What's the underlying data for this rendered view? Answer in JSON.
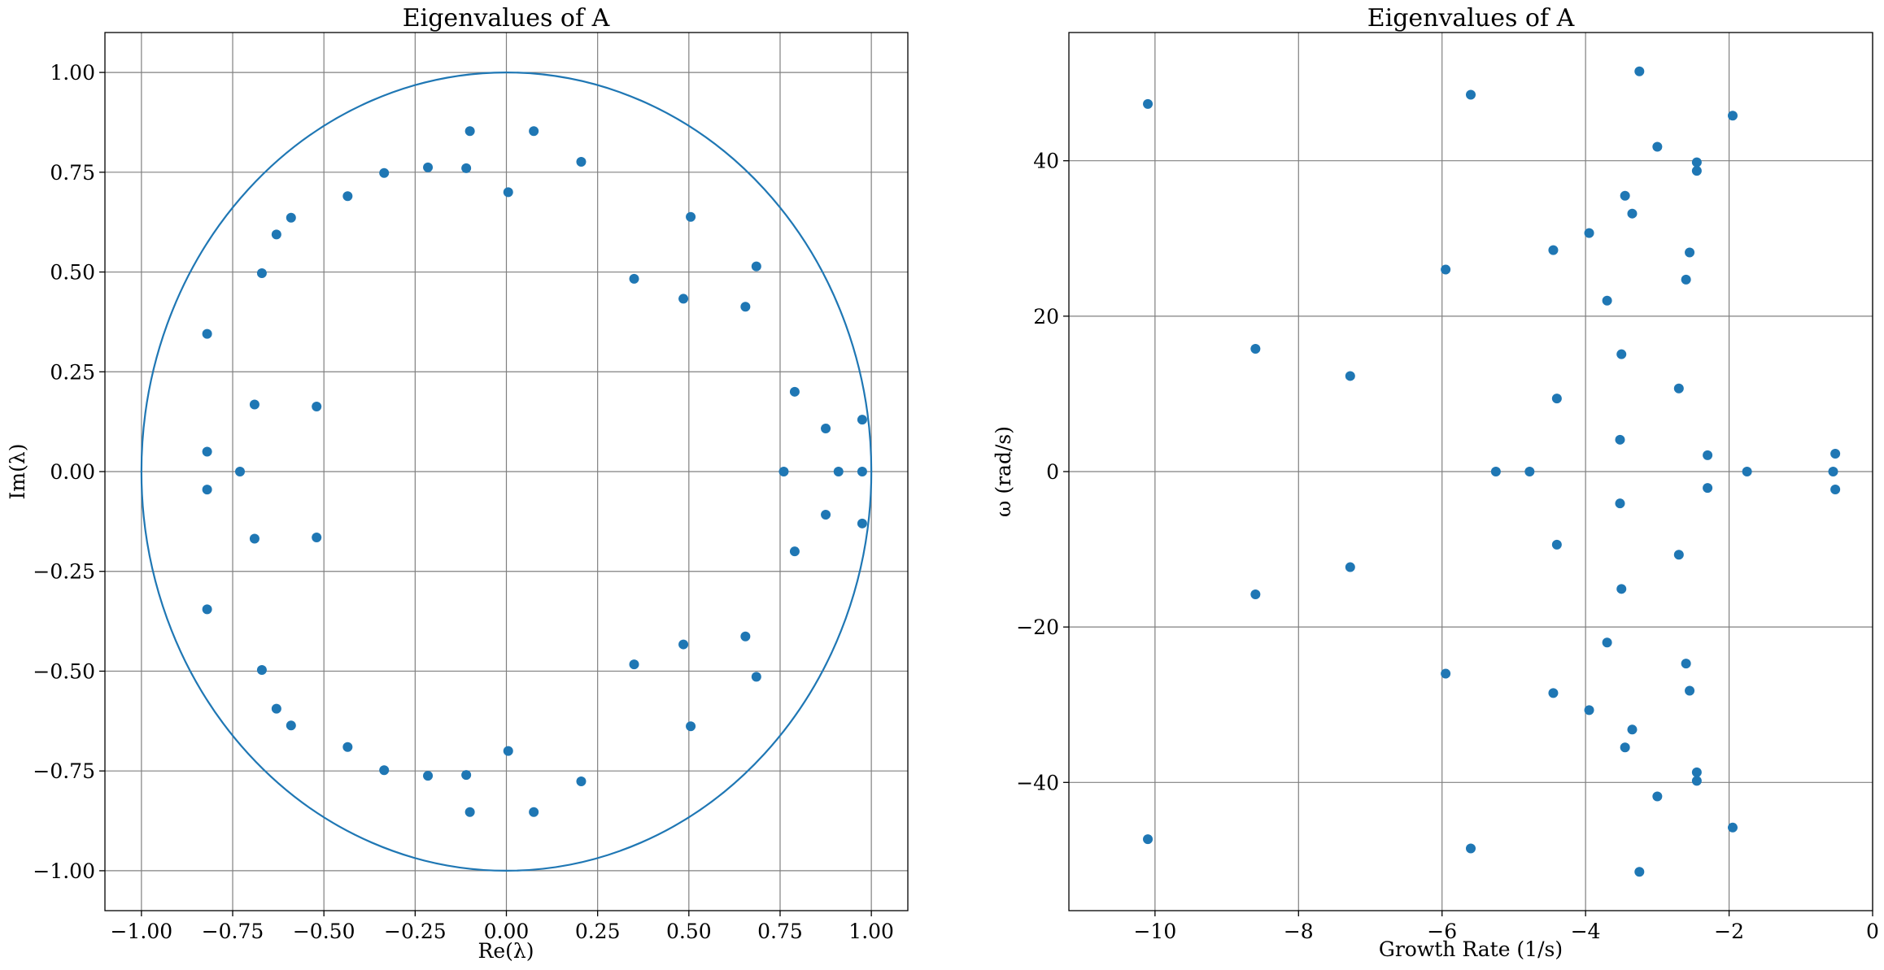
{
  "figure": {
    "colors": {
      "series": "#1f77b4",
      "grid": "#808080",
      "axes": "#000000"
    }
  },
  "chart_data": [
    {
      "type": "scatter",
      "title": "Eigenvalues of A",
      "xlabel": "Re(λ)",
      "ylabel": "Im(λ)",
      "xlim": [
        -1.1,
        1.1
      ],
      "ylim": [
        -1.1,
        1.1
      ],
      "grid": true,
      "xticks": [
        -1.0,
        -0.75,
        -0.5,
        -0.25,
        0.0,
        0.25,
        0.5,
        0.75,
        1.0
      ],
      "xtick_labels": [
        "−1.00",
        "−0.75",
        "−0.50",
        "−0.25",
        "0.00",
        "0.25",
        "0.50",
        "0.75",
        "1.00"
      ],
      "yticks": [
        1.0,
        0.75,
        0.5,
        0.25,
        0.0,
        -0.25,
        -0.5,
        -0.75,
        -1.0
      ],
      "ytick_labels": [
        "1.00",
        "0.75",
        "0.50",
        "0.25",
        "0.00",
        "−0.25",
        "−0.50",
        "−0.75",
        "−1.00"
      ],
      "annotations": [
        "unit circle"
      ],
      "series": [
        {
          "points": [
            [
              -0.82,
              0.345
            ],
            [
              -0.82,
              0.05
            ],
            [
              -0.82,
              -0.045
            ],
            [
              -0.82,
              -0.345
            ],
            [
              -0.73,
              0.0
            ],
            [
              -0.69,
              0.168
            ],
            [
              -0.69,
              -0.168
            ],
            [
              -0.67,
              0.497
            ],
            [
              -0.67,
              -0.497
            ],
            [
              -0.63,
              0.594
            ],
            [
              -0.63,
              -0.594
            ],
            [
              -0.59,
              0.636
            ],
            [
              -0.59,
              -0.636
            ],
            [
              -0.52,
              0.163
            ],
            [
              -0.52,
              -0.165
            ],
            [
              -0.435,
              0.69
            ],
            [
              -0.435,
              -0.69
            ],
            [
              -0.335,
              0.748
            ],
            [
              -0.335,
              -0.748
            ],
            [
              -0.215,
              0.762
            ],
            [
              -0.215,
              -0.762
            ],
            [
              -0.11,
              0.76
            ],
            [
              -0.11,
              -0.76
            ],
            [
              -0.1,
              0.853
            ],
            [
              -0.1,
              -0.853
            ],
            [
              0.005,
              0.7
            ],
            [
              0.005,
              -0.7
            ],
            [
              0.075,
              0.853
            ],
            [
              0.075,
              -0.853
            ],
            [
              0.205,
              0.776
            ],
            [
              0.205,
              -0.776
            ],
            [
              0.35,
              0.483
            ],
            [
              0.35,
              -0.483
            ],
            [
              0.485,
              0.433
            ],
            [
              0.485,
              -0.433
            ],
            [
              0.505,
              0.638
            ],
            [
              0.505,
              -0.638
            ],
            [
              0.655,
              0.413
            ],
            [
              0.655,
              -0.413
            ],
            [
              0.685,
              0.514
            ],
            [
              0.685,
              -0.514
            ],
            [
              0.76,
              0.0
            ],
            [
              0.79,
              0.2
            ],
            [
              0.79,
              -0.2
            ],
            [
              0.875,
              0.108
            ],
            [
              0.875,
              -0.108
            ],
            [
              0.91,
              0.0
            ],
            [
              0.975,
              0.13
            ],
            [
              0.975,
              -0.13
            ],
            [
              0.975,
              0.0
            ]
          ]
        }
      ]
    },
    {
      "type": "scatter",
      "title": "Eigenvalues of A",
      "xlabel": "Growth Rate (1/s)",
      "ylabel": "ω (rad/s)",
      "xlim": [
        -11.2,
        0
      ],
      "ylim": [
        -56.5,
        56.5
      ],
      "grid": true,
      "xticks": [
        -10,
        -8,
        -6,
        -4,
        -2,
        0
      ],
      "xtick_labels": [
        "−10",
        "−8",
        "−6",
        "−4",
        "−2",
        "0"
      ],
      "yticks": [
        40,
        20,
        0,
        -20,
        -40
      ],
      "ytick_labels": [
        "40",
        "20",
        "0",
        "−20",
        "−40"
      ],
      "series": [
        {
          "points": [
            [
              -10.1,
              47.3
            ],
            [
              -10.1,
              -47.3
            ],
            [
              -8.6,
              15.8
            ],
            [
              -8.6,
              -15.8
            ],
            [
              -7.28,
              12.3
            ],
            [
              -7.28,
              -12.3
            ],
            [
              -5.95,
              26.0
            ],
            [
              -5.95,
              -26.0
            ],
            [
              -5.6,
              48.5
            ],
            [
              -5.6,
              -48.5
            ],
            [
              -5.25,
              0.0
            ],
            [
              -4.78,
              0.0
            ],
            [
              -4.45,
              28.5
            ],
            [
              -4.45,
              -28.5
            ],
            [
              -4.4,
              9.4
            ],
            [
              -4.4,
              -9.4
            ],
            [
              -3.95,
              30.7
            ],
            [
              -3.95,
              -30.7
            ],
            [
              -3.7,
              22.0
            ],
            [
              -3.7,
              -22.0
            ],
            [
              -3.52,
              4.1
            ],
            [
              -3.52,
              -4.1
            ],
            [
              -3.5,
              15.1
            ],
            [
              -3.5,
              -15.1
            ],
            [
              -3.45,
              35.5
            ],
            [
              -3.45,
              -35.5
            ],
            [
              -3.35,
              33.2
            ],
            [
              -3.35,
              -33.2
            ],
            [
              -3.25,
              51.5
            ],
            [
              -3.25,
              -51.5
            ],
            [
              -3.0,
              41.8
            ],
            [
              -3.0,
              -41.8
            ],
            [
              -2.7,
              10.7
            ],
            [
              -2.7,
              -10.7
            ],
            [
              -2.6,
              24.7
            ],
            [
              -2.6,
              -24.7
            ],
            [
              -2.55,
              28.2
            ],
            [
              -2.55,
              -28.2
            ],
            [
              -2.45,
              39.8
            ],
            [
              -2.45,
              -39.8
            ],
            [
              -2.45,
              38.7
            ],
            [
              -2.45,
              -38.7
            ],
            [
              -2.3,
              2.1
            ],
            [
              -2.3,
              -2.1
            ],
            [
              -1.95,
              45.8
            ],
            [
              -1.95,
              -45.8
            ],
            [
              -1.75,
              0.0
            ],
            [
              -0.52,
              2.3
            ],
            [
              -0.52,
              -2.3
            ],
            [
              -0.55,
              0.0
            ]
          ]
        }
      ]
    }
  ]
}
